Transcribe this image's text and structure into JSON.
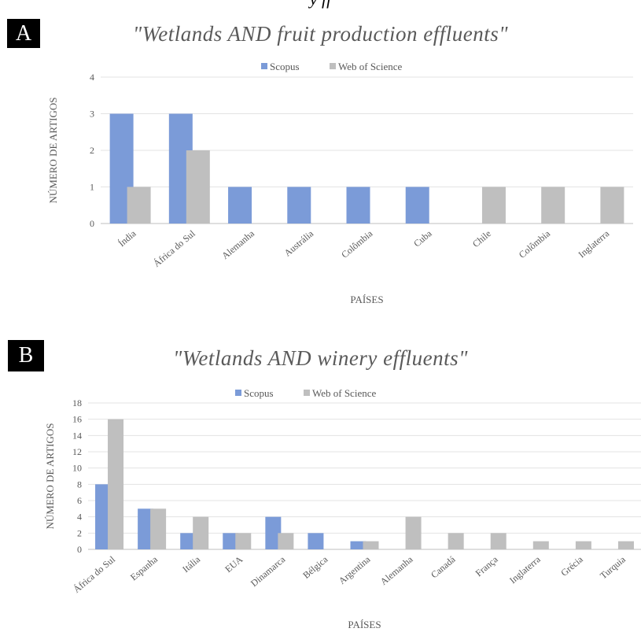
{
  "top_fragment": "y  ff",
  "chart_data": [
    {
      "panel": "A",
      "type": "bar",
      "title": "\"Wetlands AND fruit production effluents\"",
      "xlabel": "PAÍSES",
      "ylabel": "NÚMERO DE ARTIGOS",
      "ylim": [
        0,
        4
      ],
      "ytick_step": 1,
      "yticks": [
        "0",
        "1",
        "2",
        "3",
        "4"
      ],
      "grid": true,
      "legend_placement": "top-center",
      "categories": [
        "Índia",
        "África do Sul",
        "Alemanha",
        "Austrália",
        "Colômbia",
        "Cuba",
        "Chile",
        "Colômbia",
        "Inglaterra"
      ],
      "series": [
        {
          "name": "Scopus",
          "color": "#7b9bd8",
          "values": [
            3,
            3,
            1,
            1,
            1,
            1,
            0,
            0,
            0
          ]
        },
        {
          "name": "Web of Science",
          "color": "#bfbfbf",
          "values": [
            1,
            2,
            0,
            0,
            0,
            0,
            1,
            1,
            1
          ]
        }
      ]
    },
    {
      "panel": "B",
      "type": "bar",
      "title": "\"Wetlands AND winery effluents\"",
      "xlabel": "PAÍSES",
      "ylabel": "NÚMERO DE ARTIGOS",
      "ylim": [
        0,
        18
      ],
      "ytick_step": 2,
      "yticks": [
        "0",
        "2",
        "4",
        "6",
        "8",
        "10",
        "12",
        "14",
        "16",
        "18"
      ],
      "grid": true,
      "legend_placement": "top-center",
      "categories": [
        "África do Sul",
        "Espanha",
        "Itália",
        "EUA",
        "Dinamarca",
        "Bélgica",
        "Argentina",
        "Alemanha",
        "Canadá",
        "França",
        "Inglaterra",
        "Grécia",
        "Turquia"
      ],
      "series": [
        {
          "name": "Scopus",
          "color": "#7b9bd8",
          "values": [
            8,
            5,
            2,
            2,
            4,
            2,
            1,
            0,
            0,
            0,
            0,
            0,
            0
          ]
        },
        {
          "name": "Web of Science",
          "color": "#bfbfbf",
          "values": [
            16,
            5,
            4,
            2,
            2,
            0,
            1,
            4,
            2,
            2,
            1,
            1,
            1
          ]
        }
      ]
    }
  ]
}
